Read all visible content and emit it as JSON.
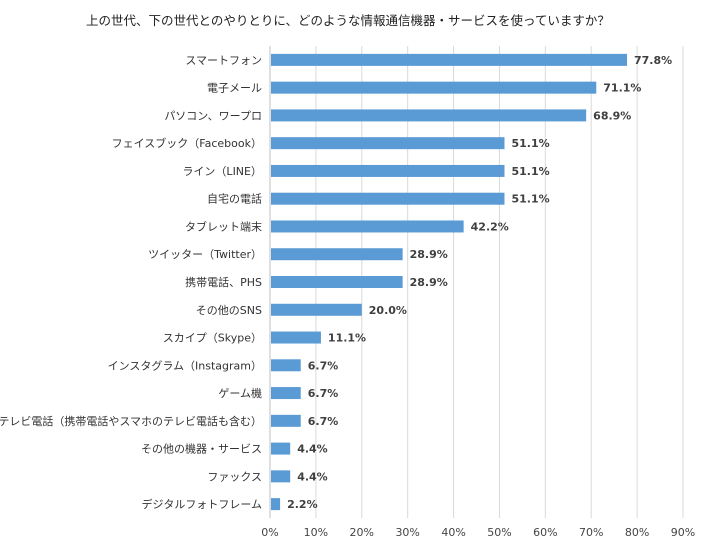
{
  "chart_data": {
    "type": "bar",
    "orientation": "horizontal",
    "title": "上の世代、下の世代とのやりとりに、どのような情報通信機器・サービスを使っていますか？",
    "categories": [
      "スマートフォン",
      "電子メール",
      "パソコン、ワープロ",
      "フェイスブック（Facebook）",
      "ライン（LINE）",
      "自宅の電話",
      "タブレット端末",
      "ツイッター（Twitter）",
      "携帯電話、PHS",
      "その他のSNS",
      "スカイプ（Skype）",
      "インスタグラム（Instagram）",
      "ゲーム機",
      "テレビ電話（携帯電話やスマホのテレビ電話も含む）",
      "その他の機器・サービス",
      "ファックス",
      "デジタルフォトフレーム"
    ],
    "values": [
      77.8,
      71.1,
      68.9,
      51.1,
      51.1,
      51.1,
      42.2,
      28.9,
      28.9,
      20.0,
      11.1,
      6.7,
      6.7,
      6.7,
      4.4,
      4.4,
      2.2
    ],
    "xlim": [
      0,
      90
    ],
    "xticks": [
      0,
      10,
      20,
      30,
      40,
      50,
      60,
      70,
      80,
      90
    ],
    "tick_suffix": "%",
    "value_suffix": "%",
    "grid": true,
    "bar_color": "#5b9bd5"
  }
}
